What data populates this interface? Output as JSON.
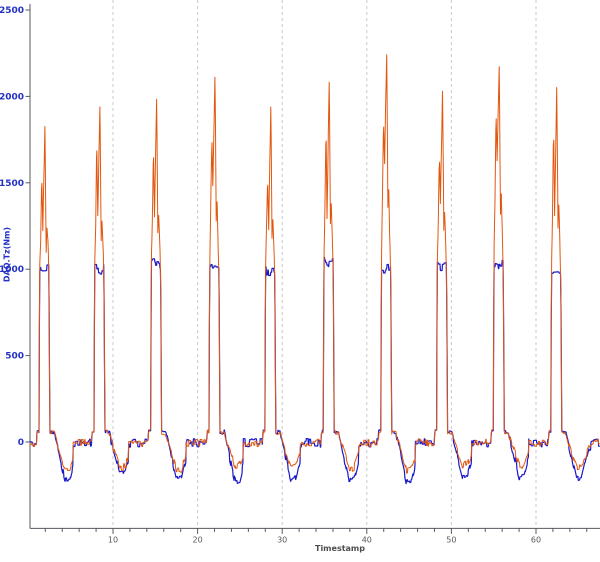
{
  "figure": {
    "background_color": "#ffffff",
    "x_axis_title": "Timestamp",
    "y_axis_title": "DAQ.Tz(Nm)"
  },
  "axes_style": {
    "axis_color": "#55595e",
    "grid_color": "#c9c9c9",
    "y_tick_label_color": "#2431c4",
    "x_tick_label_color": "#595959"
  },
  "chart_data": {
    "type": "line",
    "title": "",
    "xlabel": "Timestamp",
    "ylabel": "DAQ.Tz(Nm)",
    "xlim": [
      0.2,
      67.5
    ],
    "ylim": [
      -500,
      2500
    ],
    "x_major_ticks": [
      10,
      20,
      30,
      40,
      50,
      60
    ],
    "x_minor_step": 2,
    "x_minor_range": [
      2,
      66
    ],
    "y_ticks": [
      0,
      500,
      1000,
      1500,
      2000,
      2500
    ],
    "grid": "vertical dashed lines at x major ticks only",
    "legend": "none",
    "pattern_summary": "Periodic pulse train, period ~6.6 time units. Blue channel: square pulses plateauing at ~1000 with noise. Orange channel: sharp double spikes reaching 1850-2270 during each pulse. Both channels dip to about -150 to -220 between pulses, baseline noisy around 0.",
    "series": [
      {
        "name": "orange-series",
        "color": "#e2570f"
      },
      {
        "name": "blue-series",
        "color": "#1a18cc"
      }
    ],
    "cycles": [
      {
        "x": 2.0,
        "orange_peak": 1850,
        "blue_peak": 1010
      },
      {
        "x": 8.5,
        "orange_peak": 1960,
        "blue_peak": 1000
      },
      {
        "x": 15.2,
        "orange_peak": 2000,
        "blue_peak": 1030
      },
      {
        "x": 22.1,
        "orange_peak": 2140,
        "blue_peak": 1000
      },
      {
        "x": 28.7,
        "orange_peak": 1970,
        "blue_peak": 990
      },
      {
        "x": 35.6,
        "orange_peak": 2130,
        "blue_peak": 1040
      },
      {
        "x": 42.4,
        "orange_peak": 2270,
        "blue_peak": 1000
      },
      {
        "x": 49.0,
        "orange_peak": 2040,
        "blue_peak": 1020
      },
      {
        "x": 55.7,
        "orange_peak": 2190,
        "blue_peak": 1030
      },
      {
        "x": 62.5,
        "orange_peak": 2080,
        "blue_peak": 1000
      }
    ],
    "waveform": {
      "baseline_level": -5,
      "baseline_noise": 22,
      "pre_step_level": 62,
      "pulse": {
        "rise_t": -0.74,
        "plateau_start_t": -0.68,
        "plateau_end_t": 0.42,
        "fall_end_t": 0.54,
        "post_level": 55,
        "plateau_noise": 30,
        "orange_pulse_noise": 16
      },
      "dip": {
        "start_t": 1.05,
        "min_t": 2.3,
        "hold_end_t": 2.9,
        "end_t": 3.8,
        "blue_min": -215,
        "orange_min": -150,
        "noise": 20
      }
    },
    "sampling": {
      "dx": 0.05,
      "seed": 11
    }
  }
}
